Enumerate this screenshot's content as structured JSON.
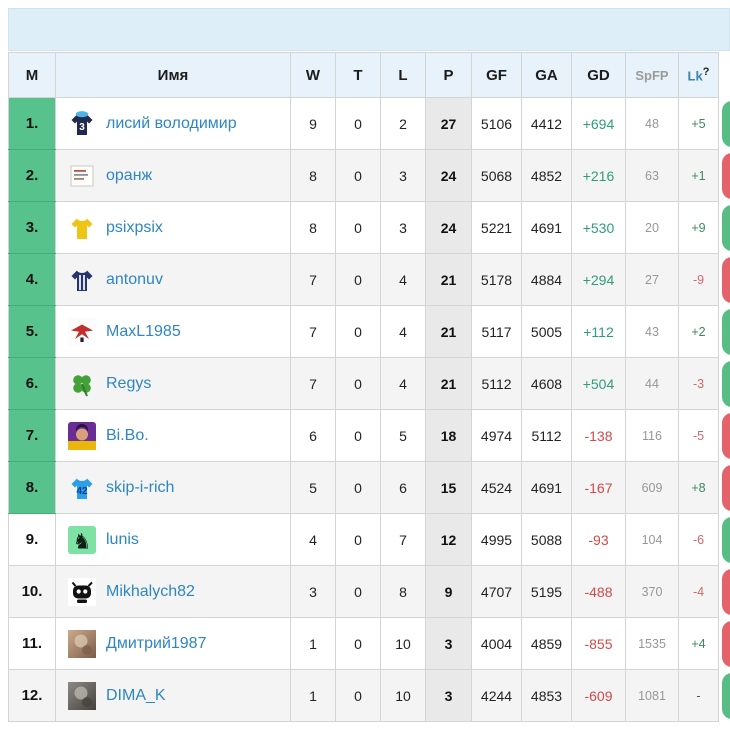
{
  "banner": {
    "title": ""
  },
  "colors": {
    "banner_bg": "#ddeef9",
    "header_bg": "#e7f2fa",
    "rank_zone_green": "#57c28c",
    "points_col_bg": "#e9e9e9",
    "link_blue": "#2e86c3",
    "gd_positive": "#2f9b7d",
    "gd_negative": "#cd4b4b",
    "lk_positive": "#3c8a5e",
    "lk_negative": "#d2666e",
    "win_pill": "#57bd85",
    "loss_pill": "#e4636b"
  },
  "table": {
    "columns": [
      {
        "label": "М"
      },
      {
        "label": "Имя"
      },
      {
        "label": "W"
      },
      {
        "label": "T"
      },
      {
        "label": "L"
      },
      {
        "label": "P"
      },
      {
        "label": "GF"
      },
      {
        "label": "GA"
      },
      {
        "label": "GD"
      },
      {
        "label": "SpFP"
      },
      {
        "label": "Lk",
        "help": "?"
      }
    ],
    "rows": [
      {
        "rank": "1.",
        "promoted": true,
        "name": "лисий володимир",
        "avatar": {
          "kind": "jersey",
          "icon": "navy-jersey-3-cap-icon",
          "color": "#20294e",
          "cap": "#4fb3e8",
          "number": "3",
          "number_color": "#ffffff"
        },
        "w": "9",
        "t": "0",
        "l": "2",
        "p": "27",
        "gf": "5106",
        "ga": "4412",
        "gd": "+694",
        "spfp": "48",
        "lk": "+5",
        "last_result": "win"
      },
      {
        "rank": "2.",
        "promoted": true,
        "name": "оранж",
        "avatar": {
          "kind": "card",
          "icon": "white-card-icon"
        },
        "w": "8",
        "t": "0",
        "l": "3",
        "p": "24",
        "gf": "5068",
        "ga": "4852",
        "gd": "+216",
        "spfp": "63",
        "lk": "+1",
        "last_result": "loss"
      },
      {
        "rank": "3.",
        "promoted": true,
        "name": "psixpsix",
        "avatar": {
          "kind": "jersey",
          "icon": "yellow-jersey-icon",
          "color": "#efc515",
          "number": "",
          "number_color": "#222222"
        },
        "w": "8",
        "t": "0",
        "l": "3",
        "p": "24",
        "gf": "5221",
        "ga": "4691",
        "gd": "+530",
        "spfp": "20",
        "lk": "+9",
        "last_result": "win"
      },
      {
        "rank": "4.",
        "promoted": true,
        "name": "antonuv",
        "avatar": {
          "kind": "jersey",
          "icon": "striped-navy-jersey-icon",
          "color": "#25356d",
          "stripes": true
        },
        "w": "7",
        "t": "0",
        "l": "4",
        "p": "21",
        "gf": "5178",
        "ga": "4884",
        "gd": "+294",
        "spfp": "27",
        "lk": "-9",
        "last_result": "loss"
      },
      {
        "rank": "5.",
        "promoted": true,
        "name": "MaxL1985",
        "avatar": {
          "kind": "eagle",
          "icon": "red-eagle-icon"
        },
        "w": "7",
        "t": "0",
        "l": "4",
        "p": "21",
        "gf": "5117",
        "ga": "5005",
        "gd": "+112",
        "spfp": "43",
        "lk": "+2",
        "last_result": "win"
      },
      {
        "rank": "6.",
        "promoted": true,
        "name": "Regys",
        "avatar": {
          "kind": "clover",
          "icon": "green-clover-icon"
        },
        "w": "7",
        "t": "0",
        "l": "4",
        "p": "21",
        "gf": "5112",
        "ga": "4608",
        "gd": "+504",
        "spfp": "44",
        "lk": "-3",
        "last_result": "win"
      },
      {
        "rank": "7.",
        "promoted": true,
        "name": "Bi.Bo.",
        "avatar": {
          "kind": "face",
          "icon": "purple-yellow-portrait-icon"
        },
        "w": "6",
        "t": "0",
        "l": "5",
        "p": "18",
        "gf": "4974",
        "ga": "5112",
        "gd": "-138",
        "spfp": "116",
        "lk": "-5",
        "last_result": "loss"
      },
      {
        "rank": "8.",
        "promoted": true,
        "name": "skip-i-rich",
        "avatar": {
          "kind": "jersey",
          "icon": "blue-jersey-42-icon",
          "color": "#2b9fe8",
          "number": "42",
          "number_color": "#0a3d8f"
        },
        "w": "5",
        "t": "0",
        "l": "6",
        "p": "15",
        "gf": "4524",
        "ga": "4691",
        "gd": "-167",
        "spfp": "609",
        "lk": "+8",
        "last_result": "loss"
      },
      {
        "rank": "9.",
        "promoted": false,
        "name": "lunis",
        "avatar": {
          "kind": "knight",
          "icon": "green-knight-icon"
        },
        "w": "4",
        "t": "0",
        "l": "7",
        "p": "12",
        "gf": "4995",
        "ga": "5088",
        "gd": "-93",
        "spfp": "104",
        "lk": "-6",
        "last_result": "win"
      },
      {
        "rank": "10.",
        "promoted": false,
        "name": "Mikhalych82",
        "avatar": {
          "kind": "robot",
          "icon": "black-ninja-robot-icon"
        },
        "w": "3",
        "t": "0",
        "l": "8",
        "p": "9",
        "gf": "4707",
        "ga": "5195",
        "gd": "-488",
        "spfp": "370",
        "lk": "-4",
        "last_result": "loss"
      },
      {
        "rank": "11.",
        "promoted": false,
        "name": "Дмитрий1987",
        "avatar": {
          "kind": "photo",
          "icon": "tan-photo-avatar-icon",
          "c1": "#cdaa8b",
          "c2": "#7a5c49",
          "c3": "#e7d3bc"
        },
        "w": "1",
        "t": "0",
        "l": "10",
        "p": "3",
        "gf": "4004",
        "ga": "4859",
        "gd": "-855",
        "spfp": "1535",
        "lk": "+4",
        "last_result": "loss"
      },
      {
        "rank": "12.",
        "promoted": false,
        "name": "DIMA_K",
        "avatar": {
          "kind": "photo",
          "icon": "gray-photo-avatar-icon",
          "c1": "#8d8a85",
          "c2": "#45413d",
          "c3": "#c9c4bc"
        },
        "w": "1",
        "t": "0",
        "l": "10",
        "p": "3",
        "gf": "4244",
        "ga": "4853",
        "gd": "-609",
        "spfp": "1081",
        "lk": "-",
        "last_result": "win"
      }
    ]
  }
}
